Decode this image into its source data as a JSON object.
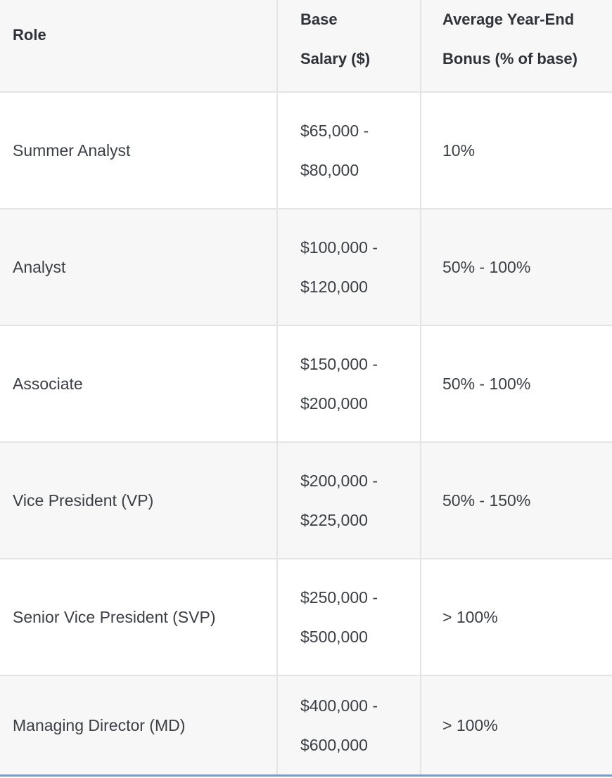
{
  "table": {
    "headers": {
      "role": "Role",
      "salary_line1": "Base",
      "salary_line2": "Salary ($)",
      "bonus_line1": "Average Year-End",
      "bonus_line2": "Bonus (% of base)"
    },
    "rows": [
      {
        "role": "Summer Analyst",
        "salary_min": "$65,000 -",
        "salary_max": "$80,000",
        "bonus": "10%"
      },
      {
        "role": "Analyst",
        "salary_min": "$100,000 -",
        "salary_max": "$120,000",
        "bonus": "50% - 100%"
      },
      {
        "role": "Associate",
        "salary_min": "$150,000 -",
        "salary_max": "$200,000",
        "bonus": "50% - 100%"
      },
      {
        "role": "Vice President (VP)",
        "salary_min": "$200,000 -",
        "salary_max": "$225,000",
        "bonus": "50% - 150%"
      },
      {
        "role": "Senior Vice President (SVP)",
        "salary_min": "$250,000 -",
        "salary_max": "$500,000",
        "bonus": "> 100%"
      },
      {
        "role": "Managing Director (MD)",
        "salary_min": "$400,000 -",
        "salary_max": "$600,000",
        "bonus": "> 100%"
      }
    ]
  }
}
